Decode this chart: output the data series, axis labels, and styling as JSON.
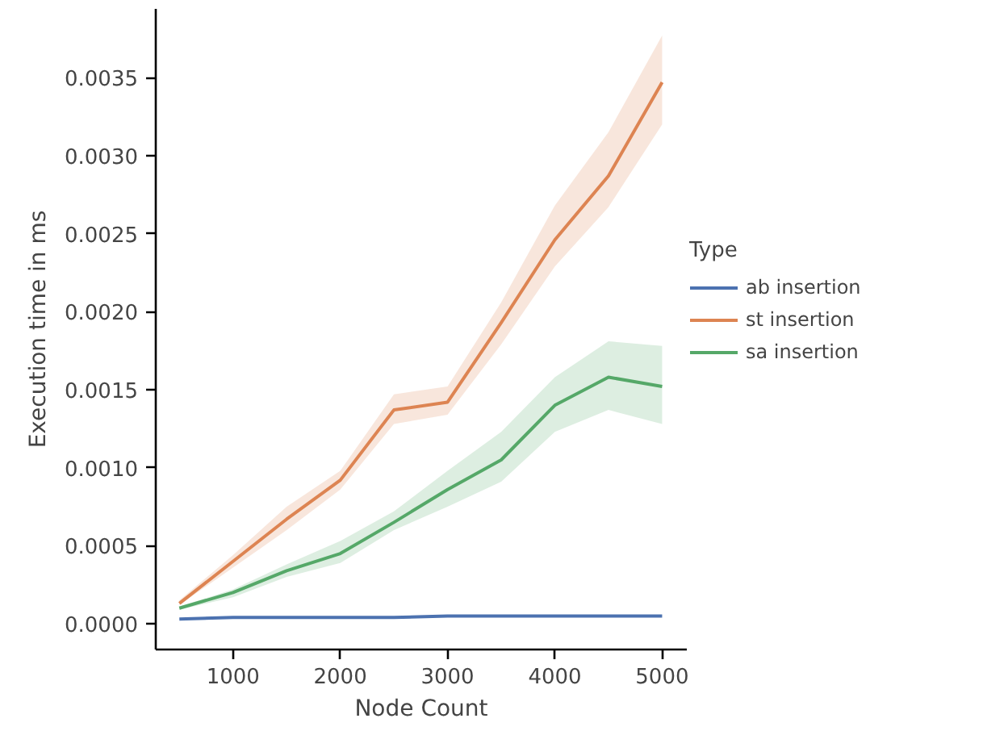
{
  "chart_data": {
    "type": "line",
    "xlabel": "Node Count",
    "ylabel": "Execution time in ms",
    "legend_title": "Type",
    "legend": "right",
    "x": [
      500,
      1000,
      1500,
      2000,
      2500,
      3000,
      3500,
      4000,
      4500,
      5000
    ],
    "series": [
      {
        "name": "ab insertion",
        "color": "#4c72b0",
        "values": [
          3e-05,
          4e-05,
          4e-05,
          4e-05,
          4e-05,
          5e-05,
          5e-05,
          5e-05,
          5e-05,
          5e-05
        ]
      },
      {
        "name": "st insertion",
        "color": "#dd8452",
        "values": [
          0.00013,
          0.0004,
          0.00067,
          0.00092,
          0.00137,
          0.00142,
          0.00193,
          0.00246,
          0.00287,
          0.00347
        ],
        "lower": [
          0.00012,
          0.00036,
          0.0006,
          0.00086,
          0.00128,
          0.00134,
          0.00179,
          0.00229,
          0.00267,
          0.0032
        ],
        "upper": [
          0.00015,
          0.00044,
          0.00075,
          0.00098,
          0.00147,
          0.00152,
          0.00206,
          0.00268,
          0.00315,
          0.00377
        ]
      },
      {
        "name": "sa insertion",
        "color": "#55a868",
        "values": [
          0.0001,
          0.0002,
          0.00034,
          0.00045,
          0.00065,
          0.00086,
          0.00105,
          0.0014,
          0.00158,
          0.00152
        ],
        "lower": [
          9e-05,
          0.00017,
          0.0003,
          0.00039,
          0.0006,
          0.00075,
          0.00091,
          0.00123,
          0.00137,
          0.00128
        ],
        "upper": [
          0.00011,
          0.00022,
          0.00038,
          0.00053,
          0.00072,
          0.00098,
          0.00123,
          0.00158,
          0.00181,
          0.00178
        ]
      }
    ],
    "xlim": [
      280,
      5230
    ],
    "ylim": [
      -0.000165,
      0.00394
    ],
    "xticks": [
      1000,
      2000,
      3000,
      4000,
      5000
    ],
    "yticks": [
      {
        "value": 0,
        "label": "0.0000"
      },
      {
        "value": 0.0005,
        "label": "0.0005"
      },
      {
        "value": 0.001,
        "label": "0.0010"
      },
      {
        "value": 0.0015,
        "label": "0.0015"
      },
      {
        "value": 0.002,
        "label": "0.0020"
      },
      {
        "value": 0.0025,
        "label": "0.0025"
      },
      {
        "value": 0.003,
        "label": "0.0030"
      },
      {
        "value": 0.0035,
        "label": "0.0035"
      }
    ]
  }
}
